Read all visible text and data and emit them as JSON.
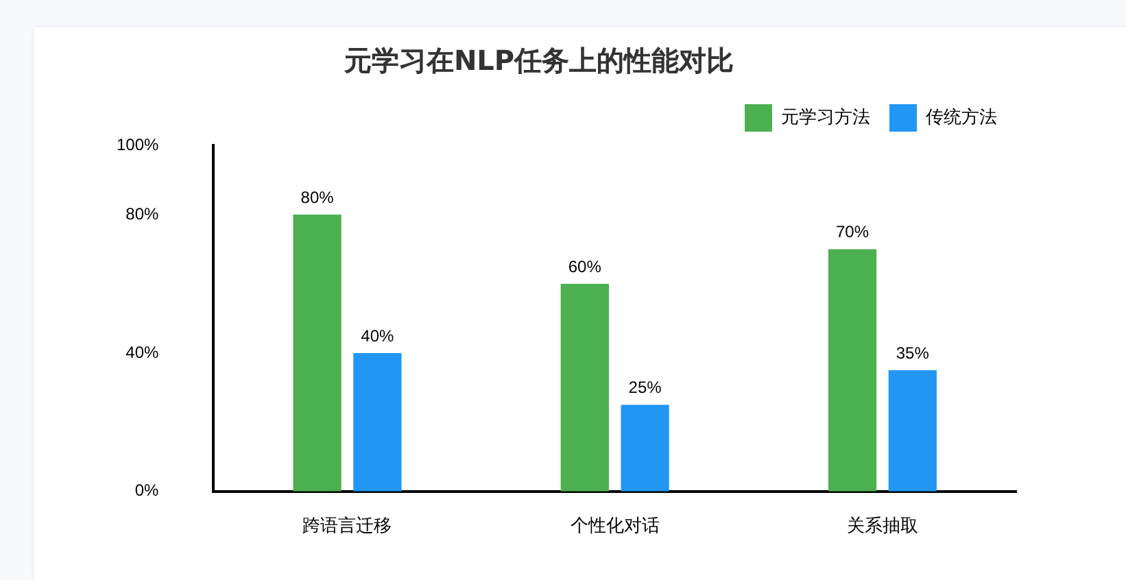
{
  "chart_data": {
    "type": "bar",
    "title": "元学习在NLP任务上的性能对比",
    "categories": [
      "跨语言迁移",
      "个性化对话",
      "关系抽取"
    ],
    "series": [
      {
        "name": "元学习方法",
        "color": "#4caf50",
        "values": [
          80,
          60,
          70
        ],
        "value_labels": [
          "80%",
          "60%",
          "70%"
        ]
      },
      {
        "name": "传统方法",
        "color": "#2196f3",
        "values": [
          40,
          25,
          35
        ],
        "value_labels": [
          "40%",
          "25%",
          "35%"
        ]
      }
    ],
    "ylim": [
      0,
      100
    ],
    "yticks": [
      {
        "value": 0,
        "label": "0%"
      },
      {
        "value": 40,
        "label": "40%"
      },
      {
        "value": 80,
        "label": "80%"
      },
      {
        "value": 100,
        "label": "100%"
      }
    ],
    "grid": false,
    "legend": "top right"
  }
}
